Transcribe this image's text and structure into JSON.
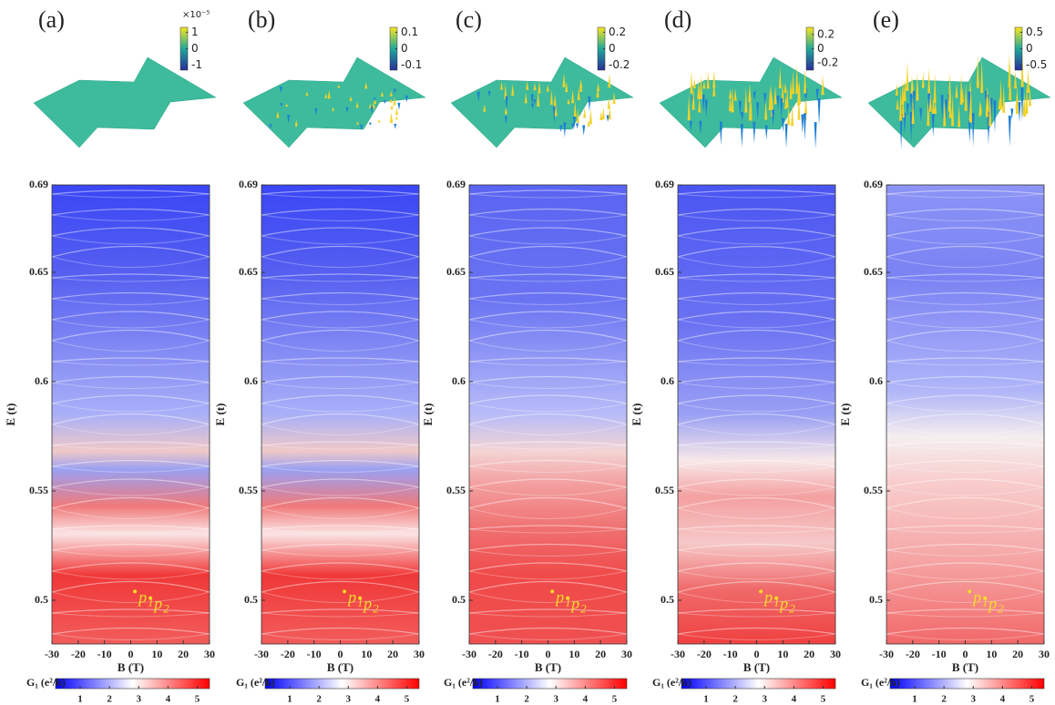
{
  "chart_data": [
    {
      "type": "heatmap",
      "label": "(a)",
      "xlabel": "B (T)",
      "ylabel": "E (t)",
      "xlim": [
        -30,
        30
      ],
      "ylim": [
        0.48,
        0.69
      ],
      "xticks": [
        -30,
        -20,
        -10,
        0,
        10,
        20,
        30
      ],
      "yticks": [
        0.5,
        0.55,
        0.6,
        0.65,
        0.69
      ],
      "points": [
        {
          "label": "p",
          "sub": "1",
          "x": 1.6,
          "y": 0.504
        },
        {
          "label": "p",
          "sub": "2",
          "x": 7.5,
          "y": 0.501
        }
      ],
      "colorbar": {
        "label": "G₁ (e²/h)",
        "lim": [
          0.16,
          5.42
        ],
        "ticks": [
          1,
          2,
          3,
          4,
          5
        ]
      },
      "inset_colorbar": {
        "lim": [
          -1.3,
          1.3
        ],
        "ticks": [
          1,
          0,
          -1
        ],
        "exponent": "×10⁻⁵"
      }
    },
    {
      "type": "heatmap",
      "label": "(b)",
      "xlabel": "B (T)",
      "ylabel": "E (t)",
      "xlim": [
        -30,
        30
      ],
      "ylim": [
        0.48,
        0.69
      ],
      "xticks": [
        -30,
        -20,
        -10,
        0,
        10,
        20,
        30
      ],
      "yticks": [
        0.5,
        0.55,
        0.6,
        0.65,
        0.69
      ],
      "points": [
        {
          "label": "p",
          "sub": "1",
          "x": 1.6,
          "y": 0.504
        },
        {
          "label": "p",
          "sub": "2",
          "x": 7.5,
          "y": 0.501
        }
      ],
      "colorbar": {
        "label": "G₁ (e²/h)",
        "lim": [
          0.16,
          5.42
        ],
        "ticks": [
          1,
          2,
          3,
          4,
          5
        ]
      },
      "inset_colorbar": {
        "lim": [
          -0.13,
          0.13
        ],
        "ticks": [
          0.1,
          0,
          -0.1
        ]
      }
    },
    {
      "type": "heatmap",
      "label": "(c)",
      "xlabel": "B (T)",
      "ylabel": "E (t)",
      "xlim": [
        -30,
        30
      ],
      "ylim": [
        0.48,
        0.69
      ],
      "xticks": [
        -30,
        -20,
        -10,
        0,
        10,
        20,
        30
      ],
      "yticks": [
        0.5,
        0.55,
        0.6,
        0.65,
        0.69
      ],
      "points": [
        {
          "label": "p",
          "sub": "1",
          "x": 1.6,
          "y": 0.504
        },
        {
          "label": "p",
          "sub": "2",
          "x": 7.5,
          "y": 0.501
        }
      ],
      "colorbar": {
        "label": "G₁ (e²/h)",
        "lim": [
          0.16,
          5.42
        ],
        "ticks": [
          1,
          2,
          3,
          4,
          5
        ]
      },
      "inset_colorbar": {
        "lim": [
          -0.26,
          0.26
        ],
        "ticks": [
          0.2,
          0,
          -0.2
        ]
      }
    },
    {
      "type": "heatmap",
      "label": "(d)",
      "xlabel": "B (T)",
      "ylabel": "E (t)",
      "xlim": [
        -30,
        30
      ],
      "ylim": [
        0.48,
        0.69
      ],
      "xticks": [
        -30,
        -20,
        -10,
        0,
        10,
        20,
        30
      ],
      "yticks": [
        0.5,
        0.55,
        0.6,
        0.65,
        0.69
      ],
      "points": [
        {
          "label": "p",
          "sub": "1",
          "x": 1.6,
          "y": 0.504
        },
        {
          "label": "p",
          "sub": "2",
          "x": 7.5,
          "y": 0.501
        }
      ],
      "colorbar": {
        "label": "G₁ (e²/h)",
        "lim": [
          0.16,
          5.42
        ],
        "ticks": [
          1,
          2,
          3,
          4,
          5
        ]
      },
      "inset_colorbar": {
        "lim": [
          -0.3,
          0.3
        ],
        "ticks": [
          0.2,
          0,
          -0.2
        ]
      }
    },
    {
      "type": "heatmap",
      "label": "(e)",
      "xlabel": "B (T)",
      "ylabel": "E (t)",
      "xlim": [
        -30,
        30
      ],
      "ylim": [
        0.48,
        0.69
      ],
      "xticks": [
        -30,
        -20,
        -10,
        0,
        10,
        20,
        30
      ],
      "yticks": [
        0.5,
        0.55,
        0.6,
        0.65,
        0.69
      ],
      "points": [
        {
          "label": "p",
          "sub": "1",
          "x": 1.6,
          "y": 0.504
        },
        {
          "label": "p",
          "sub": "2",
          "x": 7.5,
          "y": 0.501
        }
      ],
      "colorbar": {
        "label": "G₁ (e²/h)",
        "lim": [
          0.16,
          5.42
        ],
        "ticks": [
          1,
          2,
          3,
          4,
          5
        ]
      },
      "inset_colorbar": {
        "lim": [
          -0.65,
          0.65
        ],
        "ticks": [
          0.5,
          0,
          -0.5
        ]
      }
    }
  ]
}
